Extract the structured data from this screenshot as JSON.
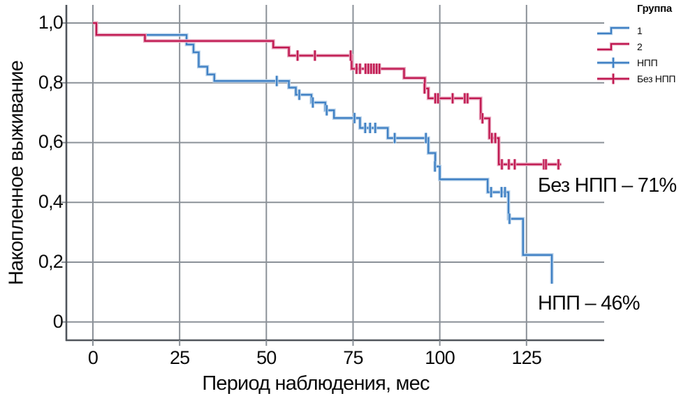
{
  "chart_data": {
    "type": "line",
    "subtype": "kaplan-meier-step",
    "title": "",
    "xlabel": "Период наблюдения, мес",
    "ylabel": "Накопленное выживание",
    "xlim": [
      0,
      137
    ],
    "ylim": [
      0,
      1.0
    ],
    "grid": true,
    "x_ticks": [
      {
        "label": "0",
        "value": 0
      },
      {
        "label": "25",
        "value": 25
      },
      {
        "label": "50",
        "value": 50
      },
      {
        "label": "75",
        "value": 75
      },
      {
        "label": "100",
        "value": 100
      },
      {
        "label": "125",
        "value": 125
      }
    ],
    "y_ticks": [
      {
        "label": "1,0",
        "value": 1.0
      },
      {
        "label": "0,8",
        "value": 0.8
      },
      {
        "label": "0,6",
        "value": 0.6
      },
      {
        "label": "0,4",
        "value": 0.4
      },
      {
        "label": "0,2",
        "value": 0.2
      },
      {
        "label": "0",
        "value": 0
      }
    ],
    "series": [
      {
        "name": "НПП",
        "group": "1",
        "color": "#3f80c4",
        "halo": "#b9d2ea",
        "steps": [
          [
            0,
            1.0
          ],
          [
            1,
            0.96
          ],
          [
            27,
            0.928
          ],
          [
            29,
            0.902
          ],
          [
            30.5,
            0.854
          ],
          [
            33,
            0.828
          ],
          [
            35,
            0.806
          ],
          [
            56.5,
            0.784
          ],
          [
            58.5,
            0.76
          ],
          [
            63,
            0.734
          ],
          [
            67,
            0.708
          ],
          [
            69.5,
            0.682
          ],
          [
            77,
            0.649
          ],
          [
            85,
            0.615
          ],
          [
            96.7,
            0.565
          ],
          [
            98.7,
            0.52
          ],
          [
            100,
            0.477
          ],
          [
            113.8,
            0.434
          ],
          [
            119.8,
            0.345
          ],
          [
            124,
            0.224
          ],
          [
            132.3,
            0.128
          ]
        ],
        "censors": [
          [
            53,
            0.806
          ],
          [
            59.5,
            0.76
          ],
          [
            63.4,
            0.734
          ],
          [
            67.4,
            0.708
          ],
          [
            75.4,
            0.682
          ],
          [
            78.5,
            0.649
          ],
          [
            79.9,
            0.649
          ],
          [
            81.4,
            0.649
          ],
          [
            87,
            0.615
          ],
          [
            96,
            0.615
          ],
          [
            98.6,
            0.52
          ],
          [
            114.8,
            0.434
          ],
          [
            117.8,
            0.434
          ],
          [
            118.8,
            0.434
          ],
          [
            120.1,
            0.345
          ]
        ]
      },
      {
        "name": "Без НПП",
        "group": "2",
        "color": "#c01850",
        "halo": "#e8a8bf",
        "steps": [
          [
            0,
            1.0
          ],
          [
            1,
            0.96
          ],
          [
            15,
            0.94
          ],
          [
            52,
            0.918
          ],
          [
            56.5,
            0.891
          ],
          [
            74.6,
            0.847
          ],
          [
            89.7,
            0.816
          ],
          [
            95.7,
            0.781
          ],
          [
            96.7,
            0.748
          ],
          [
            111.8,
            0.681
          ],
          [
            114.3,
            0.615
          ],
          [
            117,
            0.527
          ],
          [
            135,
            0.527
          ]
        ],
        "censors": [
          [
            59,
            0.891
          ],
          [
            64,
            0.891
          ],
          [
            74.3,
            0.891
          ],
          [
            76,
            0.847
          ],
          [
            77,
            0.847
          ],
          [
            78.6,
            0.847
          ],
          [
            79.4,
            0.847
          ],
          [
            80.2,
            0.847
          ],
          [
            81,
            0.847
          ],
          [
            81.8,
            0.847
          ],
          [
            82.6,
            0.847
          ],
          [
            95.6,
            0.781
          ],
          [
            98.7,
            0.748
          ],
          [
            99.5,
            0.748
          ],
          [
            103.7,
            0.748
          ],
          [
            107.2,
            0.748
          ],
          [
            108,
            0.748
          ],
          [
            112.3,
            0.681
          ],
          [
            115,
            0.615
          ],
          [
            116,
            0.615
          ],
          [
            117.9,
            0.527
          ],
          [
            119.9,
            0.527
          ],
          [
            121.6,
            0.527
          ],
          [
            130,
            0.527
          ],
          [
            130.6,
            0.527
          ],
          [
            134.2,
            0.527
          ]
        ]
      }
    ],
    "annotations": [
      {
        "text": "Без НПП – 71%"
      },
      {
        "text": "НПП – 46%"
      }
    ],
    "legend_position": "top-right"
  },
  "legend": {
    "title": "Группа",
    "items": [
      {
        "label": "1",
        "glyph": "step-line",
        "color": "#3f80c4",
        "halo": "#b9d2ea"
      },
      {
        "label": "2",
        "glyph": "step-line",
        "color": "#c01850",
        "halo": "#e8a8bf"
      },
      {
        "label": "НПП",
        "glyph": "censor-mark",
        "color": "#3f80c4",
        "halo": "#b9d2ea"
      },
      {
        "label": "Без НПП",
        "glyph": "censor-mark",
        "color": "#c01850",
        "halo": "#e8a8bf"
      }
    ]
  },
  "style_colors": {
    "gridline": "#8b9198",
    "spine": "#50555b",
    "text": "#0b0b0b"
  }
}
